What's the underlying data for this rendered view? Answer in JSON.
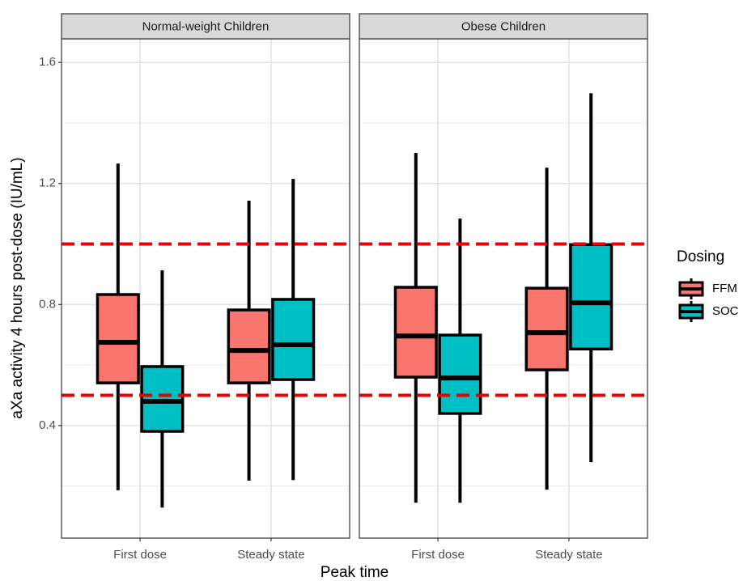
{
  "chart_data": {
    "type": "box",
    "y_label": "aXa activity 4 hours post-dose (IU/mL)",
    "x_label": "Peak time",
    "legend_title": "Dosing",
    "categories": [
      "First dose",
      "Steady state"
    ],
    "series": [
      {
        "name": "FFM",
        "color": "#F8766D"
      },
      {
        "name": "SOC",
        "color": "#00BFC4"
      }
    ],
    "ylim": [
      0.028,
      1.678
    ],
    "yticks": [
      0.4,
      0.8,
      1.2,
      1.6
    ],
    "minor_yticks": [
      0.2,
      0.6,
      1.0,
      1.4
    ],
    "grid": true,
    "reference_lines": [
      1.0,
      0.5
    ],
    "reference_color": "#EE0000",
    "facets": [
      {
        "title": "Normal-weight Children",
        "series": [
          {
            "min": [
              0.186,
              0.218
            ],
            "q1": [
              0.541,
              0.541
            ],
            "median": [
              0.675,
              0.648
            ],
            "q3": [
              0.833,
              0.782
            ],
            "max": [
              1.266,
              1.143
            ]
          },
          {
            "min": [
              0.129,
              0.22
            ],
            "q1": [
              0.381,
              0.552
            ],
            "median": [
              0.48,
              0.667
            ],
            "q3": [
              0.595,
              0.817
            ],
            "max": [
              0.913,
              1.215
            ]
          }
        ]
      },
      {
        "title": "Obese Children",
        "series": [
          {
            "min": [
              0.145,
              0.188
            ],
            "q1": [
              0.56,
              0.584
            ],
            "median": [
              0.696,
              0.707
            ],
            "q3": [
              0.857,
              0.854
            ],
            "max": [
              1.301,
              1.252
            ]
          },
          {
            "min": [
              0.145,
              0.279
            ],
            "q1": [
              0.44,
              0.653
            ],
            "median": [
              0.557,
              0.806
            ],
            "q3": [
              0.699,
              0.998
            ],
            "max": [
              1.084,
              1.498
            ]
          }
        ]
      }
    ]
  }
}
